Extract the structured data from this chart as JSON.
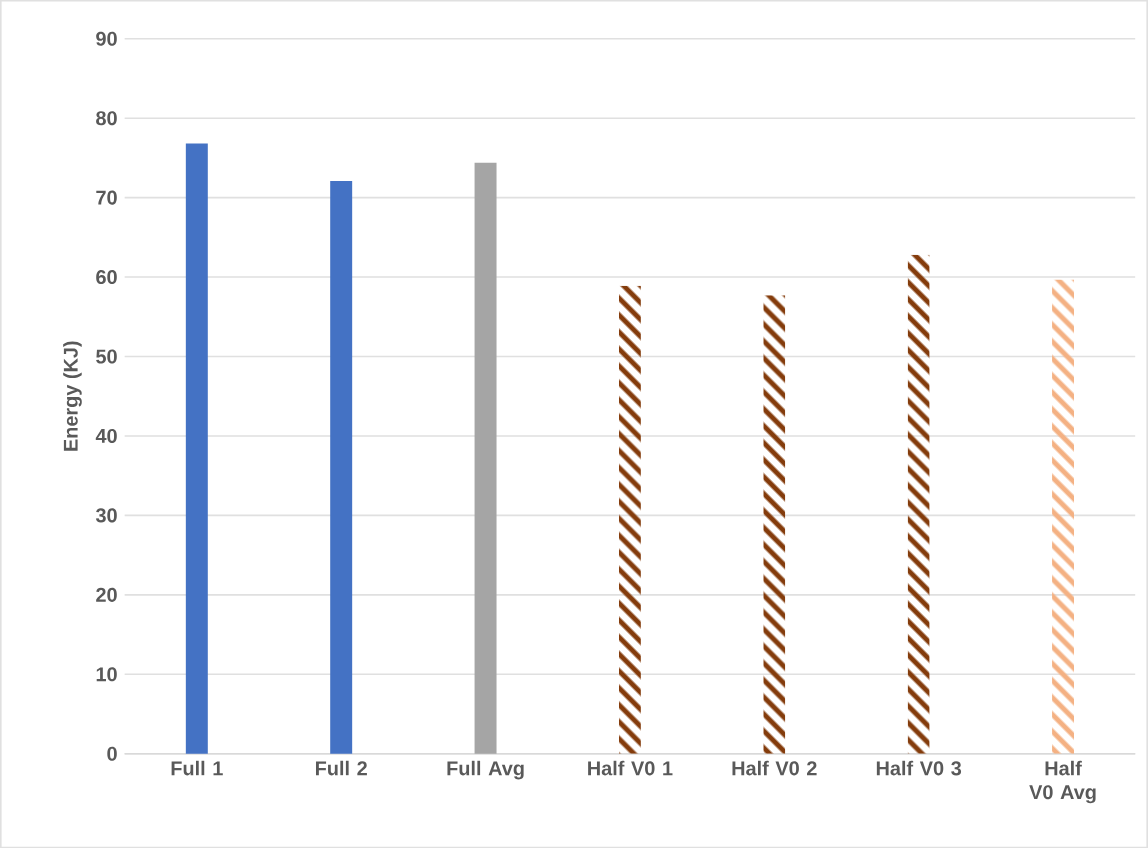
{
  "chart_data": {
    "type": "bar",
    "ylabel": "Energy (KJ)",
    "categories": [
      "Full 1",
      "Full 2",
      "Full Avg",
      "Half V0 1",
      "Half V0 2",
      "Half V0 3",
      "Half V0 Avg"
    ],
    "values": [
      76.8,
      72.1,
      74.4,
      58.9,
      57.7,
      62.8,
      59.7
    ],
    "colors": [
      "#4472c4",
      "#4472c4",
      "#a5a5a5",
      "#843c0c",
      "#843c0c",
      "#843c0c",
      "#f4b183"
    ],
    "ylim": [
      0,
      90
    ],
    "yticks": [
      0,
      10,
      20,
      30,
      40,
      50,
      60,
      70,
      80,
      90
    ],
    "grid": "y"
  }
}
